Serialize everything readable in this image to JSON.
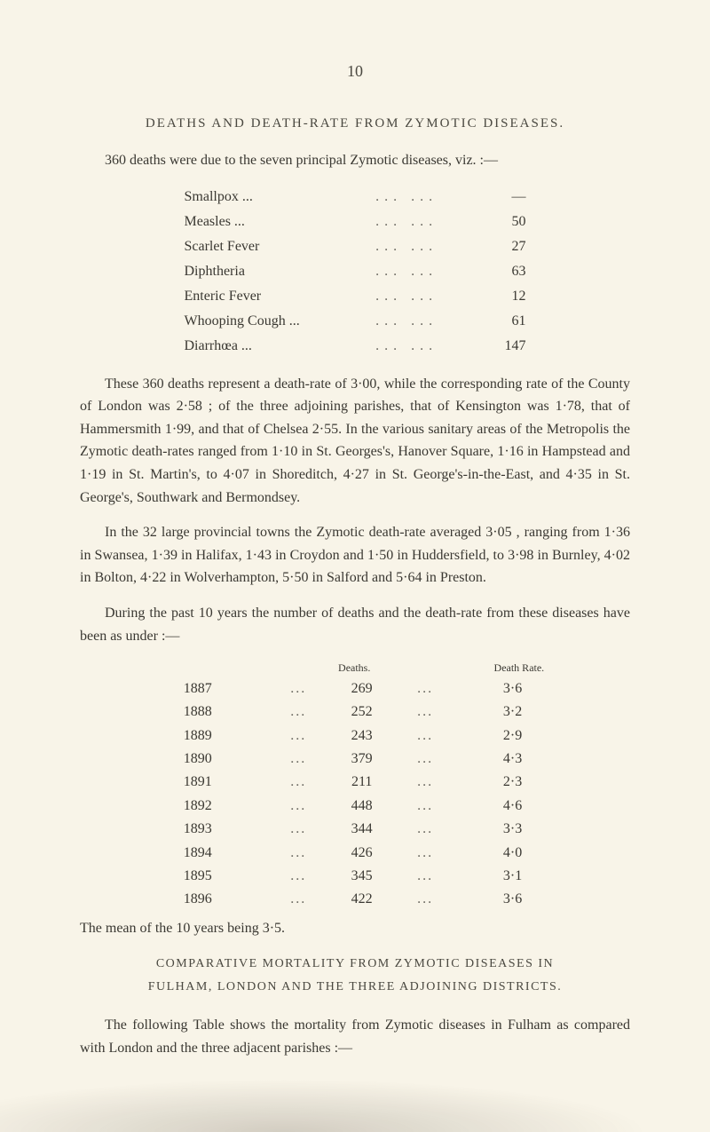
{
  "pageNumber": "10",
  "sectionTitle": "DEATHS AND DEATH-RATE FROM ZYMOTIC DISEASES.",
  "intro": "360 deaths were due to the seven principal Zymotic diseases, viz. :—",
  "diseaseList": [
    {
      "label": "Smallpox ...",
      "value": "—"
    },
    {
      "label": "Measles ...",
      "value": "50"
    },
    {
      "label": "Scarlet Fever",
      "value": "27"
    },
    {
      "label": "Diphtheria",
      "value": "63"
    },
    {
      "label": "Enteric Fever",
      "value": "12"
    },
    {
      "label": "Whooping Cough ...",
      "value": "61"
    },
    {
      "label": "Diarrhœa ...",
      "value": "147"
    }
  ],
  "para1": "These 360 deaths represent a death-rate of 3·00, while the corresponding rate of the County of London was 2·58 ; of the three adjoining parishes, that of Kensington was 1·78, that of Hammersmith 1·99, and that of Chelsea 2·55. In the various sanitary areas of the Metropolis the Zymotic death-rates ranged from 1·10 in St. Georges's, Hanover Square, 1·16 in Hampstead and 1·19 in St. Martin's, to 4·07 in Shoreditch, 4·27 in St. George's-in-the-East, and 4·35 in St. George's, Southwark and Bermondsey.",
  "para2": "In the 32 large provincial towns the Zymotic death-rate averaged 3·05 , ranging from 1·36 in Swansea, 1·39 in Halifax, 1·43 in Croydon and 1·50 in Huddersfield, to 3·98 in Burnley, 4·02 in Bolton, 4·22 in Wolverhampton, 5·50 in Salford and 5·64 in Preston.",
  "para3": "During the past 10 years the number of deaths and the death-rate from these diseases have been as under :—",
  "tableHeaders": {
    "deaths": "Deaths.",
    "rate": "Death Rate."
  },
  "deathTable": [
    {
      "year": "1887",
      "deaths": "269",
      "rate": "3·6"
    },
    {
      "year": "1888",
      "deaths": "252",
      "rate": "3·2"
    },
    {
      "year": "1889",
      "deaths": "243",
      "rate": "2·9"
    },
    {
      "year": "1890",
      "deaths": "379",
      "rate": "4·3"
    },
    {
      "year": "1891",
      "deaths": "211",
      "rate": "2·3"
    },
    {
      "year": "1892",
      "deaths": "448",
      "rate": "4·6"
    },
    {
      "year": "1893",
      "deaths": "344",
      "rate": "3·3"
    },
    {
      "year": "1894",
      "deaths": "426",
      "rate": "4·0"
    },
    {
      "year": "1895",
      "deaths": "345",
      "rate": "3·1"
    },
    {
      "year": "1896",
      "deaths": "422",
      "rate": "3·6"
    }
  ],
  "meanLine": "The mean of the 10 years being 3·5.",
  "sectionTitle2Line1": "COMPARATIVE MORTALITY FROM ZYMOTIC DISEASES IN",
  "sectionTitle2Line2": "FULHAM, LONDON AND THE THREE ADJOINING DISTRICTS.",
  "para4": "The following Table shows the mortality from Zymotic diseases in Fulham as compared with London and the three adjacent parishes :—",
  "dotsText": "..."
}
